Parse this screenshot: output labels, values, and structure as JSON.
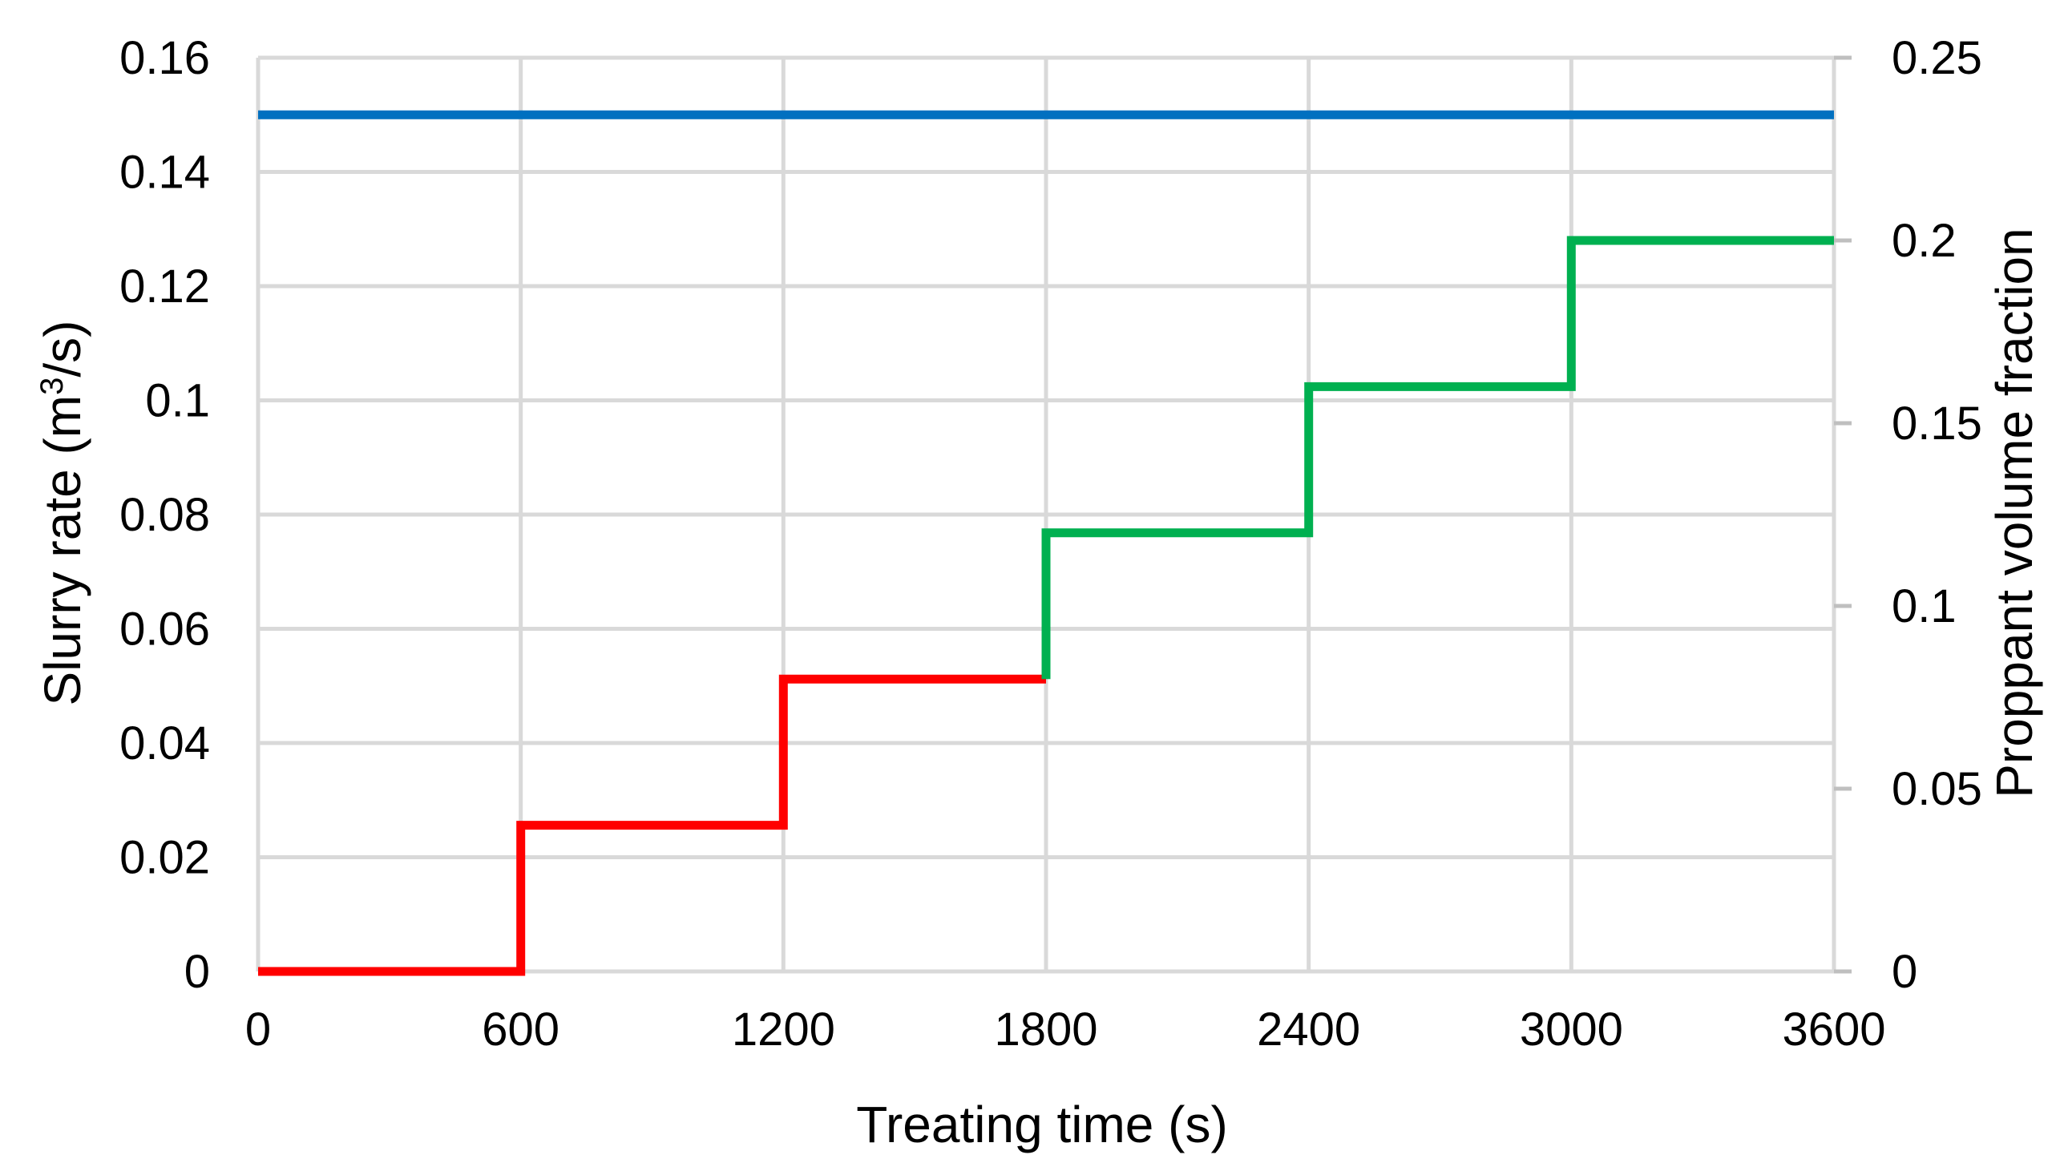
{
  "chart_data": {
    "type": "line",
    "step": true,
    "grid": true,
    "legend": false,
    "title": "",
    "x": {
      "label": "Treating time (s)",
      "range": [
        0,
        3600
      ],
      "ticks": [
        0,
        600,
        1200,
        1800,
        2400,
        3000,
        3600
      ],
      "tick_labels": [
        "0",
        "600",
        "1200",
        "1800",
        "2400",
        "3000",
        "3600"
      ]
    },
    "y_left": {
      "label_parts": [
        "Slurry rate (m",
        "3",
        "/s)"
      ],
      "range": [
        0,
        0.16
      ],
      "ticks": [
        0,
        0.02,
        0.04,
        0.06,
        0.08,
        0.1,
        0.12,
        0.14,
        0.16
      ],
      "tick_labels": [
        "0",
        "0.02",
        "0.04",
        "0.06",
        "0.08",
        "0.1",
        "0.12",
        "0.14",
        "0.16"
      ]
    },
    "y_right": {
      "label": "Proppant volume fraction",
      "range": [
        0,
        0.25
      ],
      "ticks": [
        0,
        0.05,
        0.1,
        0.15,
        0.2,
        0.25
      ],
      "tick_labels": [
        "0",
        "0.05",
        "0.1",
        "0.15",
        "0.2",
        "0.25"
      ]
    },
    "series": [
      {
        "axis": "left",
        "color": "#0070c0",
        "points": [
          [
            0,
            0.15
          ],
          [
            3600,
            0.15
          ]
        ]
      },
      {
        "axis": "right",
        "color": "#ff0000",
        "points": [
          [
            0,
            0
          ],
          [
            600,
            0
          ],
          [
            600,
            0.04
          ],
          [
            1200,
            0.04
          ],
          [
            1200,
            0.08
          ],
          [
            1800,
            0.08
          ]
        ]
      },
      {
        "axis": "right",
        "color": "#00b050",
        "points": [
          [
            1800,
            0.08
          ],
          [
            1800,
            0.12
          ],
          [
            2400,
            0.12
          ],
          [
            2400,
            0.16
          ],
          [
            3000,
            0.16
          ],
          [
            3000,
            0.2
          ],
          [
            3600,
            0.2
          ]
        ]
      }
    ]
  }
}
